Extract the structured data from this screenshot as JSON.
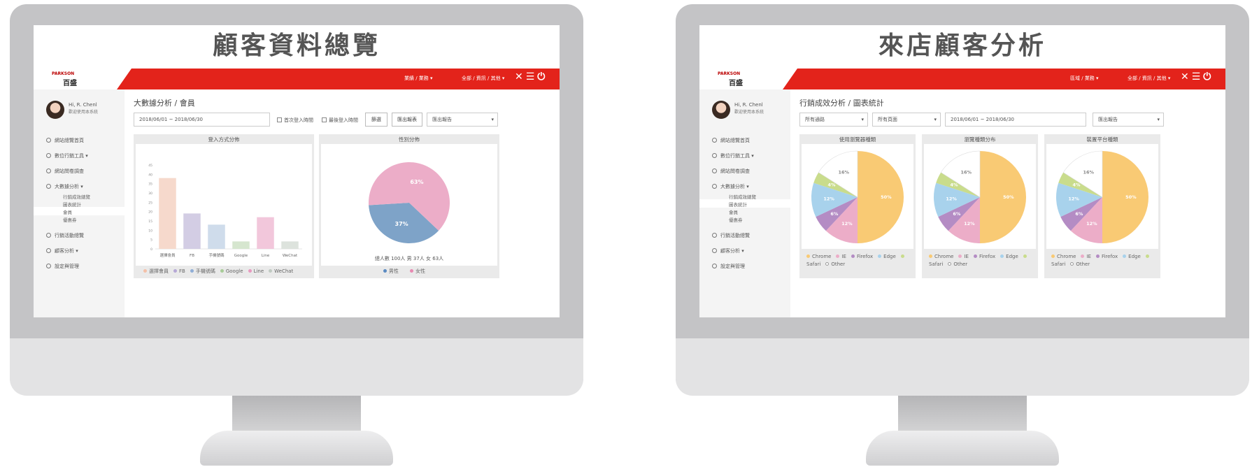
{
  "left": {
    "title": "顧客資料總覽",
    "logo_small": "PARKSON",
    "logo_main": "百盛",
    "topmenu": [
      "業績 / 業務 ▾",
      "全部 / 資訊 / 其他 ▾"
    ],
    "user": {
      "name": "Hi, R. Chenl",
      "sub": "歡迎使用本系統"
    },
    "nav": [
      "網站總覽首頁",
      "數位行銷工具 ▾",
      "網站問卷調查",
      "大數據分析 ▾",
      "行銷活動總覽",
      "顧客分析 ▾",
      "設定與管理"
    ],
    "subnav": [
      "行銷成效總覽",
      "圖表統計",
      "會員",
      "優惠券"
    ],
    "page_title": "大數據分析 / 會員",
    "date_range": "2018/06/01 ~ 2018/06/30",
    "checks": [
      "首次登入時間",
      "最後登入時間"
    ],
    "buttons": [
      "篩選",
      "匯出報表"
    ],
    "select": "匯出報告",
    "bar_panel_title": "登入方式分佈",
    "pie_panel_title": "性別分佈",
    "pie_summary": "總人數 100人  男 37人  女 63人",
    "pie_legend": [
      "男性",
      "女性"
    ],
    "colors": {
      "red": "#e3231b",
      "male": "#7ea3c8",
      "female": "#ecadc8"
    }
  },
  "right": {
    "title": "來店顧客分析",
    "logo_small": "PARKSON",
    "logo_main": "百盛",
    "topmenu": [
      "區域 / 業務 ▾",
      "全部 / 資訊 / 其他 ▾"
    ],
    "user": {
      "name": "Hi, R. Chenl",
      "sub": "歡迎使用本系統"
    },
    "nav": [
      "網站總覽首頁",
      "數位行銷工具 ▾",
      "網站問卷調查",
      "大數據分析 ▾",
      "行銷活動總覽",
      "顧客分析 ▾",
      "設定與管理"
    ],
    "subnav": [
      "行銷成效總覽",
      "圖表統計",
      "會員",
      "優惠券"
    ],
    "page_title": "行銷成效分析 / 圖表統計",
    "selects": [
      "所有通路",
      "所有頁面",
      "2018/06/01 ~ 2018/06/30",
      "匯出報告"
    ],
    "pie_titles": [
      "使用瀏覽器種類",
      "瀏覽種類分布",
      "裝置平台種類"
    ],
    "colors": {
      "red": "#e3231b"
    }
  },
  "chart_data": [
    {
      "type": "bar",
      "title": "登入方式分佈",
      "categories": [
        "選擇會員",
        "FB",
        "手機號碼",
        "Google",
        "Line",
        "WeChat"
      ],
      "values": [
        38,
        19,
        13,
        4,
        17,
        4
      ],
      "colors": [
        "#f6d9cc",
        "#d3cde4",
        "#cfdceb",
        "#d6e6cf",
        "#f2c7db",
        "#dde3dd"
      ],
      "ylim": [
        0,
        45
      ],
      "yticks": [
        0,
        5,
        10,
        15,
        20,
        25,
        30,
        35,
        40,
        45
      ],
      "legend": [
        "選擇會員",
        "FB",
        "手機號碼",
        "Google",
        "Line",
        "WeChat"
      ],
      "legend_colors": [
        "#f4c0a8",
        "#b6a8d6",
        "#90aed6",
        "#a8cc98",
        "#e89ac0",
        "#c0cac2"
      ]
    },
    {
      "type": "pie",
      "title": "性別分佈",
      "categories": [
        "男性",
        "女性"
      ],
      "values": [
        37,
        63
      ],
      "labels": [
        "37%",
        "63%"
      ],
      "colors": [
        "#7ea3c8",
        "#ecadc8"
      ]
    },
    {
      "type": "pie",
      "title": "使用瀏覽器種類",
      "categories": [
        "Chrome",
        "IE",
        "Firefox",
        "Edge",
        "Safari",
        "Other"
      ],
      "values": [
        50,
        12,
        6,
        12,
        4,
        16
      ],
      "labels": [
        "50%",
        "12%",
        "6%",
        "12%",
        "4%",
        "16%"
      ]
    },
    {
      "type": "pie",
      "title": "瀏覽種類分布",
      "categories": [
        "Chrome",
        "IE",
        "Firefox",
        "Edge",
        "Safari",
        "Other"
      ],
      "values": [
        50,
        12,
        6,
        12,
        4,
        16
      ],
      "labels": [
        "50%",
        "12%",
        "6%",
        "12%",
        "4%",
        "16%"
      ]
    },
    {
      "type": "pie",
      "title": "裝置平台種類",
      "categories": [
        "Chrome",
        "IE",
        "Firefox",
        "Edge",
        "Safari",
        "Other"
      ],
      "values": [
        50,
        12,
        6,
        12,
        4,
        16
      ],
      "labels": [
        "50%",
        "12%",
        "6%",
        "12%",
        "4%",
        "16%"
      ]
    }
  ],
  "browser_colors": [
    "#f9ca74",
    "#ecadc8",
    "#b48cc4",
    "#a8d2ec",
    "#c9dc8c",
    "#ffffff"
  ]
}
